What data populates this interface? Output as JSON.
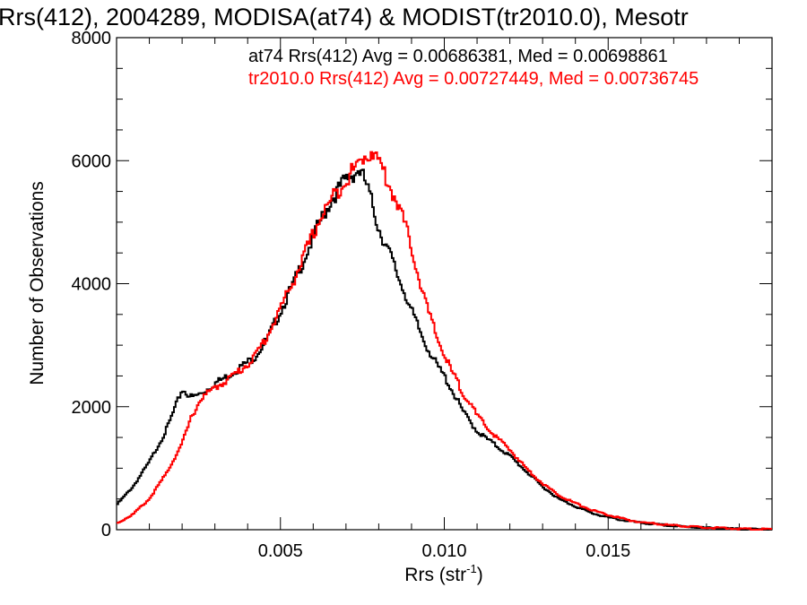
{
  "chart_data": {
    "type": "line",
    "step": true,
    "title": "Rrs(412), 2004289, MODISA(at74) & MODIST(tr2010.0), Mesotr",
    "xlabel": "Rrs (str",
    "xlabel_sup": "-1",
    "xlabel_close": ")",
    "ylabel": "Number of Observations",
    "xlim": [
      0.0,
      0.02
    ],
    "ylim": [
      0,
      8000
    ],
    "xticks": [
      0.005,
      0.01,
      0.015
    ],
    "xtick_labels": [
      "0.005",
      "0.010",
      "0.015"
    ],
    "yticks": [
      0,
      2000,
      4000,
      6000,
      8000
    ],
    "ytick_labels": [
      "0",
      "2000",
      "4000",
      "6000",
      "8000"
    ],
    "legend_position": "top-right",
    "series": [
      {
        "name": "at74",
        "legend": "at74 Rrs(412) Avg = 0.00686381, Med = 0.00698861",
        "color": "#000000",
        "x": [
          0.0,
          0.0005,
          0.001,
          0.0015,
          0.0018,
          0.002,
          0.0023,
          0.0026,
          0.003,
          0.0034,
          0.0038,
          0.0042,
          0.0046,
          0.005,
          0.0054,
          0.0058,
          0.0062,
          0.0066,
          0.007,
          0.0074,
          0.0076,
          0.0078,
          0.008,
          0.0082,
          0.0084,
          0.0086,
          0.0088,
          0.009,
          0.0092,
          0.0094,
          0.0096,
          0.0098,
          0.01,
          0.0102,
          0.0104,
          0.0106,
          0.0108,
          0.011,
          0.0115,
          0.012,
          0.0125,
          0.013,
          0.0135,
          0.014,
          0.0145,
          0.015,
          0.0155,
          0.016,
          0.017,
          0.018,
          0.019,
          0.02
        ],
        "y": [
          400,
          700,
          1100,
          1600,
          2000,
          2280,
          2150,
          2220,
          2380,
          2500,
          2650,
          2800,
          3100,
          3550,
          4000,
          4500,
          5000,
          5400,
          5700,
          5850,
          5650,
          5300,
          4900,
          4650,
          4400,
          4100,
          3850,
          3550,
          3300,
          3050,
          2850,
          2650,
          2500,
          2300,
          2100,
          1900,
          1750,
          1600,
          1400,
          1200,
          950,
          700,
          500,
          380,
          270,
          200,
          150,
          110,
          60,
          30,
          10,
          5
        ]
      },
      {
        "name": "tr2010.0",
        "legend": "tr2010.0 Rrs(412) Avg = 0.00727449, Med = 0.00736745",
        "color": "#ff0000",
        "x": [
          0.0,
          0.0005,
          0.001,
          0.0015,
          0.002,
          0.0023,
          0.0026,
          0.003,
          0.0034,
          0.0038,
          0.0042,
          0.0046,
          0.005,
          0.0054,
          0.0058,
          0.0062,
          0.0066,
          0.007,
          0.0074,
          0.0076,
          0.0078,
          0.008,
          0.0082,
          0.0084,
          0.0086,
          0.0088,
          0.009,
          0.0092,
          0.0094,
          0.0096,
          0.0098,
          0.01,
          0.0102,
          0.0104,
          0.0106,
          0.0108,
          0.011,
          0.0115,
          0.012,
          0.0125,
          0.013,
          0.0135,
          0.014,
          0.0145,
          0.015,
          0.0155,
          0.016,
          0.017,
          0.018,
          0.019,
          0.02
        ],
        "y": [
          100,
          250,
          500,
          900,
          1400,
          1850,
          2150,
          2300,
          2450,
          2600,
          2800,
          3150,
          3600,
          4050,
          4550,
          5050,
          5400,
          5700,
          5950,
          6100,
          6150,
          6000,
          5750,
          5500,
          5300,
          4950,
          4600,
          4150,
          3750,
          3400,
          3100,
          2850,
          2600,
          2400,
          2200,
          2050,
          1850,
          1550,
          1300,
          1000,
          750,
          560,
          430,
          320,
          240,
          170,
          120,
          70,
          35,
          15,
          5
        ]
      }
    ]
  }
}
